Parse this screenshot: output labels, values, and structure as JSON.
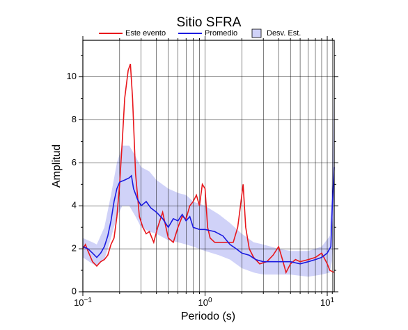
{
  "chart_data": {
    "type": "line",
    "title": "Sitio SFRA",
    "xlabel": "Periodo (s)",
    "ylabel": "Amplitud",
    "xscale": "log",
    "xlim": [
      0.1,
      11.4
    ],
    "ylim": [
      0,
      11.7
    ],
    "xticks": [
      {
        "value": 0.1,
        "label": "10",
        "exponent": "−1"
      },
      {
        "value": 1,
        "label": "10",
        "exponent": "0"
      },
      {
        "value": 10,
        "label": "10",
        "exponent": "1"
      }
    ],
    "xminorticks": [
      0.2,
      0.3,
      0.4,
      0.5,
      0.6,
      0.7,
      0.8,
      0.9,
      2,
      3,
      4,
      5,
      6,
      7,
      8,
      9,
      11
    ],
    "yticks": [
      0,
      2,
      4,
      6,
      8,
      10
    ],
    "yminorticks": [
      1,
      3,
      5,
      7,
      9,
      11
    ],
    "grid": true,
    "legend": "top",
    "series": [
      {
        "name": "Desv. Est.",
        "kind": "band",
        "color": "#d0d2f8",
        "x": [
          0.1,
          0.12,
          0.13,
          0.15,
          0.17,
          0.19,
          0.21,
          0.24,
          0.27,
          0.3,
          0.35,
          0.4,
          0.5,
          0.6,
          0.7,
          0.8,
          1.0,
          1.3,
          1.6,
          2.0,
          2.5,
          3.0,
          4.0,
          5.0,
          7.0,
          9.0,
          10.5,
          11.0,
          11.4
        ],
        "lower": [
          1.6,
          1.3,
          1.2,
          1.5,
          2.5,
          3.5,
          4.0,
          4.0,
          3.5,
          3.0,
          2.8,
          2.7,
          2.4,
          2.3,
          2.2,
          2.1,
          1.9,
          1.7,
          1.5,
          1.1,
          0.9,
          0.8,
          0.8,
          0.8,
          0.7,
          0.8,
          0.9,
          1.5,
          3.0
        ],
        "upper": [
          2.5,
          2.3,
          2.2,
          3.0,
          4.5,
          6.0,
          6.8,
          6.8,
          6.3,
          5.8,
          5.6,
          5.2,
          4.8,
          4.6,
          4.5,
          4.2,
          4.0,
          3.6,
          3.2,
          2.7,
          2.3,
          2.2,
          2.0,
          1.9,
          1.9,
          2.1,
          2.6,
          6.0,
          10.5
        ]
      },
      {
        "name": "Este evento",
        "kind": "line",
        "color": "#e8161b",
        "x": [
          0.1,
          0.105,
          0.11,
          0.12,
          0.13,
          0.14,
          0.15,
          0.16,
          0.17,
          0.18,
          0.19,
          0.2,
          0.21,
          0.22,
          0.235,
          0.245,
          0.255,
          0.27,
          0.29,
          0.31,
          0.33,
          0.35,
          0.38,
          0.41,
          0.45,
          0.5,
          0.55,
          0.6,
          0.65,
          0.7,
          0.75,
          0.8,
          0.85,
          0.9,
          0.95,
          1.0,
          1.05,
          1.1,
          1.2,
          1.3,
          1.5,
          1.7,
          1.85,
          1.95,
          2.05,
          2.15,
          2.3,
          2.5,
          2.8,
          3.2,
          3.6,
          4.0,
          4.3,
          4.6,
          5.0,
          5.5,
          6.0,
          7.0,
          8.0,
          9.0,
          10.0,
          10.5,
          11.4
        ],
        "values": [
          2.0,
          2.2,
          1.9,
          1.4,
          1.2,
          1.4,
          1.5,
          1.7,
          2.2,
          2.5,
          3.5,
          5.0,
          7.0,
          9.0,
          10.3,
          10.6,
          9.0,
          5.5,
          3.5,
          3.0,
          2.7,
          2.8,
          2.3,
          3.0,
          3.7,
          2.5,
          2.3,
          3.0,
          3.5,
          3.4,
          4.0,
          4.2,
          4.5,
          4.0,
          5.0,
          4.8,
          3.0,
          2.5,
          2.3,
          2.3,
          2.3,
          2.3,
          3.0,
          4.0,
          5.0,
          3.0,
          2.0,
          1.6,
          1.3,
          1.4,
          1.7,
          2.1,
          1.5,
          0.9,
          1.3,
          1.5,
          1.4,
          1.5,
          1.6,
          1.8,
          1.3,
          1.0,
          0.9
        ]
      },
      {
        "name": "Promedio",
        "kind": "line",
        "color": "#1a1ae0",
        "x": [
          0.1,
          0.11,
          0.12,
          0.13,
          0.14,
          0.15,
          0.16,
          0.17,
          0.18,
          0.19,
          0.2,
          0.22,
          0.24,
          0.25,
          0.26,
          0.28,
          0.3,
          0.33,
          0.36,
          0.4,
          0.45,
          0.5,
          0.55,
          0.6,
          0.65,
          0.7,
          0.75,
          0.8,
          0.9,
          1.0,
          1.2,
          1.4,
          1.6,
          1.8,
          2.0,
          2.3,
          2.6,
          3.0,
          4.0,
          5.0,
          6.0,
          7.0,
          8.0,
          9.0,
          10.0,
          10.7,
          11.0,
          11.4
        ],
        "values": [
          2.1,
          2.0,
          1.8,
          1.6,
          1.8,
          2.1,
          2.6,
          3.3,
          4.2,
          4.8,
          5.1,
          5.2,
          5.3,
          5.4,
          4.8,
          4.3,
          4.0,
          4.2,
          3.9,
          3.7,
          3.4,
          3.0,
          3.4,
          3.3,
          3.6,
          3.3,
          3.5,
          3.0,
          2.9,
          2.9,
          2.8,
          2.6,
          2.2,
          2.0,
          1.8,
          1.7,
          1.5,
          1.4,
          1.4,
          1.4,
          1.3,
          1.4,
          1.5,
          1.6,
          1.8,
          2.1,
          4.0,
          5.8
        ]
      }
    ]
  }
}
